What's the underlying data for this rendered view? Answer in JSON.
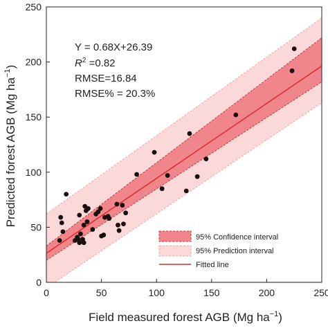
{
  "chart_data": {
    "type": "scatter",
    "xlabel": "Field measured forest AGB (Mg ha",
    "xlabel_sup": "−1",
    "xlabel_end": ")",
    "ylabel": "Predicted forest AGB (Mg ha",
    "ylabel_sup": "−1",
    "ylabel_end": ")",
    "xlim": [
      0,
      250
    ],
    "ylim": [
      0,
      250
    ],
    "xticks": [
      0,
      50,
      100,
      150,
      200,
      250
    ],
    "yticks": [
      0,
      50,
      100,
      150,
      200,
      250
    ],
    "grid": false,
    "stats": {
      "equation": "Y = 0.68X+26.39",
      "r2_label": "R",
      "r2_sup": "2",
      "r2_value": " =0.82",
      "rmse": "RMSE=16.84",
      "rmse_pct": "RMSE% = 20.3%"
    },
    "fit": {
      "slope": 0.68,
      "intercept": 26.39
    },
    "confidence_band": {
      "lower": [
        [
          0,
          20
        ],
        [
          250,
          182
        ]
      ],
      "upper": [
        [
          0,
          33
        ],
        [
          250,
          222
        ]
      ]
    },
    "prediction_band": {
      "lower": [
        [
          0,
          -5
        ],
        [
          250,
          163
        ]
      ],
      "upper": [
        [
          0,
          62
        ],
        [
          250,
          240
        ]
      ]
    },
    "legend": {
      "position": "bottom-right",
      "items": [
        {
          "label": "95% Confidence interval",
          "kind": "confidence"
        },
        {
          "label": "95% Prediction interval",
          "kind": "prediction"
        },
        {
          "label": "Fitted line",
          "kind": "line"
        }
      ]
    },
    "colors": {
      "confidence": "#f0868b",
      "prediction": "#fbd9d9",
      "fit_line": "#d9302d",
      "points": "#1a0f0f"
    },
    "points": [
      [
        12,
        38
      ],
      [
        13,
        59
      ],
      [
        14,
        54
      ],
      [
        15,
        46
      ],
      [
        18,
        80
      ],
      [
        26,
        38
      ],
      [
        28,
        41
      ],
      [
        29,
        39
      ],
      [
        30,
        36
      ],
      [
        30,
        61
      ],
      [
        31,
        44
      ],
      [
        33,
        39
      ],
      [
        34,
        36
      ],
      [
        34,
        52
      ],
      [
        35,
        69
      ],
      [
        36,
        65
      ],
      [
        37,
        55
      ],
      [
        38,
        67
      ],
      [
        42,
        48
      ],
      [
        45,
        62
      ],
      [
        47,
        64
      ],
      [
        49,
        67
      ],
      [
        50,
        42
      ],
      [
        52,
        43
      ],
      [
        53,
        59
      ],
      [
        56,
        60
      ],
      [
        57,
        58
      ],
      [
        64,
        71
      ],
      [
        65,
        52
      ],
      [
        66,
        47
      ],
      [
        69,
        70
      ],
      [
        70,
        53
      ],
      [
        72,
        63
      ],
      [
        82,
        98
      ],
      [
        98,
        118
      ],
      [
        105,
        85
      ],
      [
        110,
        97
      ],
      [
        127,
        83
      ],
      [
        130,
        135
      ],
      [
        137,
        96
      ],
      [
        145,
        112
      ],
      [
        172,
        152
      ],
      [
        223,
        192
      ],
      [
        225,
        212
      ]
    ]
  }
}
